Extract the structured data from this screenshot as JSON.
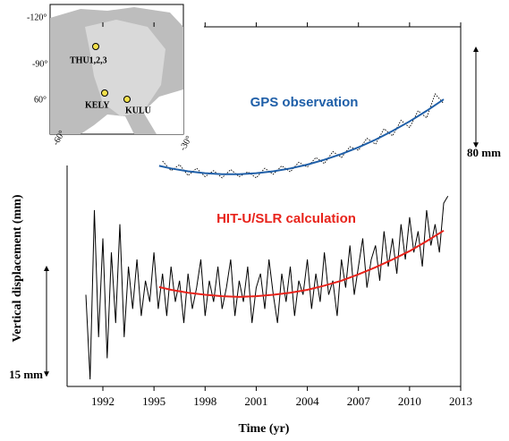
{
  "chart_data": [
    {
      "type": "line",
      "title": "GPS observation",
      "title_color": "#1f5fa8",
      "xlim": [
        1989.9,
        2013
      ],
      "ylim": [
        -200,
        100
      ],
      "scale_bar": {
        "value": 80,
        "label": "80 mm"
      },
      "series": [
        {
          "color": "#000000",
          "line_style": "dotted",
          "x": [
            1995.5,
            1996,
            1996.5,
            1997,
            1997.5,
            1998,
            1998.5,
            1999,
            1999.5,
            2000,
            2000.5,
            2001,
            2001.5,
            2002,
            2002.5,
            2003,
            2003.5,
            2004,
            2004.5,
            2005,
            2005.5,
            2006,
            2006.5,
            2007,
            2007.5,
            2008,
            2008.5,
            2009,
            2009.5,
            2010,
            2010.5,
            2011,
            2011.5,
            2012
          ],
          "values": [
            -12,
            -20,
            -15,
            -24,
            -18,
            -25,
            -20,
            -26,
            -19,
            -25,
            -21,
            -26,
            -18,
            -23,
            -16,
            -21,
            -13,
            -17,
            -9,
            -14,
            -4,
            -9,
            0,
            -3,
            7,
            2,
            15,
            9,
            22,
            16,
            30,
            24,
            44,
            36
          ]
        },
        {
          "color": "#1f5fa8",
          "line_style": "solid",
          "x": [
            1995.3,
            1996,
            1997,
            1998,
            1999,
            2000,
            2001,
            2002,
            2003,
            2004,
            2005,
            2006,
            2007,
            2008,
            2009,
            2010,
            2011,
            2012
          ],
          "values": [
            -16,
            -18.1,
            -20.5,
            -22.1,
            -22.9,
            -22.9,
            -22.1,
            -20.5,
            -18.1,
            -14.9,
            -10.9,
            -6.1,
            -0.5,
            5.9,
            13.1,
            21.1,
            29.9,
            39.5
          ]
        }
      ]
    },
    {
      "type": "line",
      "title": "HIT-U/SLR calculation",
      "title_color": "#e8231b",
      "x_label": "Time (yr)",
      "y_label": "Vertical displacement (mm)",
      "xlim": [
        1989.9,
        2013
      ],
      "ylim": [
        -35,
        16
      ],
      "xticks": [
        1992,
        1995,
        1998,
        2001,
        2004,
        2007,
        2010,
        2013
      ],
      "scale_bar": {
        "value": 15,
        "label": "15 mm"
      },
      "series": [
        {
          "color": "#000000",
          "line_style": "solid",
          "x": [
            1991,
            1991.25,
            1991.5,
            1991.75,
            1992,
            1992.25,
            1992.5,
            1992.75,
            1993,
            1993.25,
            1993.5,
            1993.75,
            1994,
            1994.25,
            1994.5,
            1994.75,
            1995,
            1995.25,
            1995.5,
            1995.75,
            1996,
            1996.25,
            1996.5,
            1996.75,
            1997,
            1997.25,
            1997.5,
            1997.75,
            1998,
            1998.25,
            1998.5,
            1998.75,
            1999,
            1999.25,
            1999.5,
            1999.75,
            2000,
            2000.25,
            2000.5,
            2000.75,
            2001,
            2001.25,
            2001.5,
            2001.75,
            2002,
            2002.25,
            2002.5,
            2002.75,
            2003,
            2003.25,
            2003.5,
            2003.75,
            2004,
            2004.25,
            2004.5,
            2004.75,
            2005,
            2005.25,
            2005.5,
            2005.75,
            2006,
            2006.25,
            2006.5,
            2006.75,
            2007,
            2007.25,
            2007.5,
            2007.75,
            2008,
            2008.25,
            2008.5,
            2008.75,
            2009,
            2009.25,
            2009.5,
            2009.75,
            2010,
            2010.25,
            2010.5,
            2010.75,
            2011,
            2011.25,
            2011.5,
            2011.75,
            2012,
            2012.25
          ],
          "values": [
            -22,
            -34,
            -10,
            -28,
            -14,
            -31,
            -16,
            -26,
            -12,
            -28,
            -18,
            -24,
            -17,
            -25,
            -20,
            -23,
            -16,
            -24,
            -19,
            -25,
            -18,
            -23,
            -20,
            -26,
            -19,
            -24,
            -21,
            -17,
            -25,
            -20,
            -23,
            -18,
            -24,
            -21,
            -17,
            -25,
            -20,
            -23,
            -18,
            -26,
            -21,
            -19,
            -24,
            -17,
            -22,
            -26,
            -19,
            -23,
            -18,
            -25,
            -20,
            -22,
            -17,
            -24,
            -19,
            -23,
            -16,
            -22,
            -20,
            -25,
            -17,
            -21,
            -15,
            -22,
            -18,
            -14,
            -21,
            -17,
            -15,
            -20,
            -13,
            -18,
            -14,
            -19,
            -12,
            -17,
            -11,
            -16,
            -13,
            -18,
            -10,
            -15,
            -12,
            -16,
            -9,
            -8
          ]
        },
        {
          "color": "#e8231b",
          "line_style": "solid",
          "x": [
            1995.3,
            1996,
            1997,
            1998,
            1999,
            2000,
            2001,
            2002,
            2003,
            2004,
            2005,
            2006,
            2007,
            2008,
            2009,
            2010,
            2011,
            2012
          ],
          "values": [
            -20.9,
            -21.3,
            -21.7,
            -22.0,
            -22.2,
            -22.3,
            -22.2,
            -22.0,
            -21.7,
            -21.3,
            -20.7,
            -20.0,
            -19.1,
            -18.1,
            -17.0,
            -15.8,
            -14.4,
            -12.9
          ]
        }
      ]
    }
  ],
  "inset": {
    "stations": [
      "THU1,2,3",
      "KELY",
      "KULU"
    ],
    "graticule_labels": [
      "-120°",
      "-90°",
      "60°",
      "-60°",
      "-30°"
    ]
  }
}
